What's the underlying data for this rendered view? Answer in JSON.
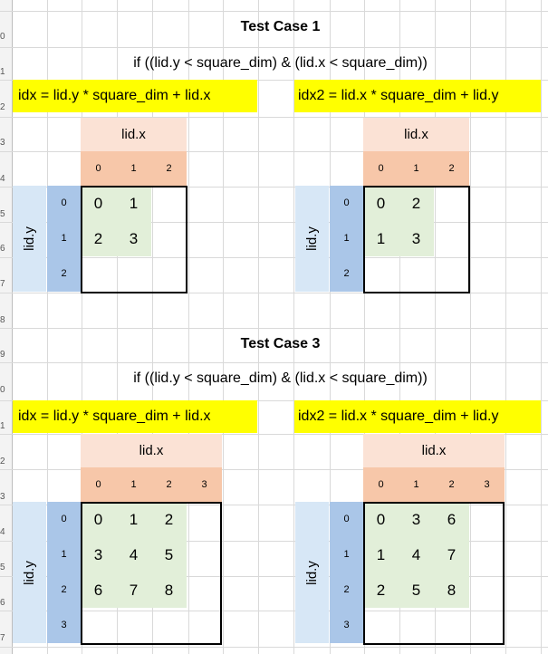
{
  "row_numbers": [
    "0",
    "1",
    "2",
    "3",
    "4",
    "5",
    "6",
    "7",
    "8",
    "9",
    "0",
    "1",
    "2",
    "3",
    "4",
    "5",
    "6",
    "7"
  ],
  "case1": {
    "title": "Test Case 1",
    "condition": "if ((lid.y < square_dim) & (lid.x < square_dim))",
    "left_formula": "idx = lid.y * square_dim + lid.x",
    "right_formula": "idx2 = lid.x * square_dim + lid.y",
    "col_axis_label": "lid.x",
    "row_axis_label": "lid.y",
    "col_indices": [
      "0",
      "1",
      "2"
    ],
    "row_indices": [
      "0",
      "1",
      "2"
    ],
    "left_cells": [
      [
        "0",
        "1",
        ""
      ],
      [
        "2",
        "3",
        ""
      ],
      [
        "",
        "",
        ""
      ]
    ],
    "right_cells": [
      [
        "0",
        "2",
        ""
      ],
      [
        "1",
        "3",
        ""
      ],
      [
        "",
        "",
        ""
      ]
    ]
  },
  "case3": {
    "title": "Test Case 3",
    "condition": "if ((lid.y < square_dim) & (lid.x < square_dim))",
    "left_formula": "idx = lid.y * square_dim + lid.x",
    "right_formula": "idx2 = lid.x * square_dim + lid.y",
    "col_axis_label": "lid.x",
    "row_axis_label": "lid.y",
    "col_indices": [
      "0",
      "1",
      "2",
      "3"
    ],
    "row_indices": [
      "0",
      "1",
      "2",
      "3"
    ],
    "left_cells": [
      [
        "0",
        "1",
        "2",
        ""
      ],
      [
        "3",
        "4",
        "5",
        ""
      ],
      [
        "6",
        "7",
        "8",
        ""
      ],
      [
        "",
        "",
        "",
        ""
      ]
    ],
    "right_cells": [
      [
        "0",
        "3",
        "6",
        ""
      ],
      [
        "1",
        "4",
        "7",
        ""
      ],
      [
        "2",
        "5",
        "8",
        ""
      ],
      [
        "",
        "",
        "",
        ""
      ]
    ]
  },
  "colors": {
    "highlight_yellow": "#ffff00",
    "header_pink": "#fbe2d5",
    "index_salmon": "#f7c7a9",
    "axis_lightblue": "#d7e7f6",
    "index_blue": "#aac6e8",
    "filled_green": "#e2efd9"
  }
}
